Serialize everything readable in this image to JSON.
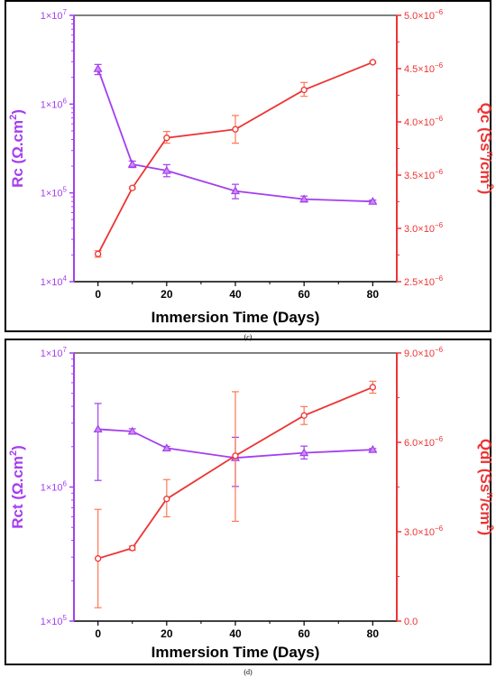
{
  "colors": {
    "left_series": "#a43ef0",
    "right_series": "#ee3333",
    "error_bars": "#ff7755",
    "frame": "#000000"
  },
  "captions": [
    "(c)",
    "(d)"
  ],
  "chart_data": [
    {
      "type": "line",
      "panel": "(c)",
      "xlabel": "Immersion Time (Days)",
      "xlim": [
        -7,
        87
      ],
      "x_ticks": [
        0,
        20,
        40,
        60,
        80
      ],
      "x": [
        0,
        10,
        20,
        40,
        60,
        80
      ],
      "left_axis": {
        "label_base": "Rc",
        "label_unit": "(Ω.cm",
        "label_sup": "2",
        "label_close": ")",
        "scale": "log",
        "ylim": [
          10000,
          10000000
        ],
        "tick_labels": [
          "1×10",
          "1×10",
          "1×10",
          "1×10"
        ],
        "tick_exponents": [
          "4",
          "5",
          "6",
          "7"
        ],
        "tick_values": [
          10000,
          100000,
          1000000,
          10000000
        ]
      },
      "right_axis": {
        "label_base": "Qc",
        "label_unit": "(Ss",
        "label_sup1": "n",
        "label_mid": "/cm",
        "label_sup2": "2",
        "label_close": ")",
        "scale": "linear",
        "ylim": [
          2.5e-06,
          5e-06
        ],
        "tick_labels": [
          "2.5×10",
          "3.0×10",
          "3.5×10",
          "4.0×10",
          "4.5×10",
          "5.0×10"
        ],
        "tick_exponent": "−6",
        "tick_values": [
          2.5e-06,
          3e-06,
          3.5e-06,
          4e-06,
          4.5e-06,
          5e-06
        ]
      },
      "series": [
        {
          "axis": "left",
          "marker": "triangle",
          "values": [
            2500000,
            210000,
            178000,
            105000,
            85000,
            80000
          ],
          "err_low": [
            2150000,
            193000,
            152000,
            86000,
            79000,
            77000
          ],
          "err_high": [
            2800000,
            228000,
            208000,
            125000,
            92000,
            83000
          ]
        },
        {
          "axis": "right",
          "marker": "circle",
          "values": [
            2.76e-06,
            3.38e-06,
            3.85e-06,
            3.93e-06,
            4.3e-06,
            4.56e-06
          ],
          "err_low": [
            2.73e-06,
            3.37e-06,
            3.8e-06,
            3.8e-06,
            4.24e-06,
            4.55e-06
          ],
          "err_high": [
            2.79e-06,
            3.39e-06,
            3.91e-06,
            4.06e-06,
            4.37e-06,
            4.57e-06
          ]
        }
      ]
    },
    {
      "type": "line",
      "panel": "(d)",
      "xlabel": "Immersion Time (Days)",
      "xlim": [
        -7,
        87
      ],
      "x_ticks": [
        0,
        20,
        40,
        60,
        80
      ],
      "x": [
        0,
        10,
        20,
        40,
        60,
        80
      ],
      "left_axis": {
        "label_base": "Rct",
        "label_unit": "(Ω.cm",
        "label_sup": "2",
        "label_close": ")",
        "scale": "log",
        "ylim": [
          100000,
          10000000
        ],
        "tick_labels": [
          "1×10",
          "1×10",
          "1×10"
        ],
        "tick_exponents": [
          "5",
          "6",
          "7"
        ],
        "tick_values": [
          100000,
          1000000,
          10000000
        ]
      },
      "right_axis": {
        "label_base": "Qdl",
        "label_unit": "(Ss",
        "label_sup1": "n",
        "label_mid": "/cm",
        "label_sup2": "2",
        "label_close": ")",
        "scale": "linear",
        "ylim": [
          0,
          9e-06
        ],
        "tick_labels": [
          "0.0",
          "3.0×10",
          "6.0×10",
          "9.0×10"
        ],
        "tick_exponents": [
          "",
          "−6",
          "−6",
          "−6"
        ],
        "tick_values": [
          0,
          3e-06,
          6e-06,
          9e-06
        ]
      },
      "series": [
        {
          "axis": "left",
          "marker": "triangle",
          "values": [
            2700000,
            2600000,
            1950000,
            1650000,
            1800000,
            1900000
          ],
          "err_low": [
            1120000,
            2480000,
            1890000,
            1010000,
            1620000,
            1860000
          ],
          "err_high": [
            4200000,
            2720000,
            2010000,
            2350000,
            2020000,
            1940000
          ]
        },
        {
          "axis": "right",
          "marker": "circle",
          "values": [
            2.1e-06,
            2.45e-06,
            4.1e-06,
            5.55e-06,
            6.9e-06,
            7.85e-06
          ],
          "err_low": [
            4.5e-07,
            2.38e-06,
            3.5e-06,
            3.35e-06,
            6.6e-06,
            7.65e-06
          ],
          "err_high": [
            3.75e-06,
            2.52e-06,
            4.75e-06,
            7.7e-06,
            7.2e-06,
            8.05e-06
          ]
        }
      ]
    }
  ]
}
